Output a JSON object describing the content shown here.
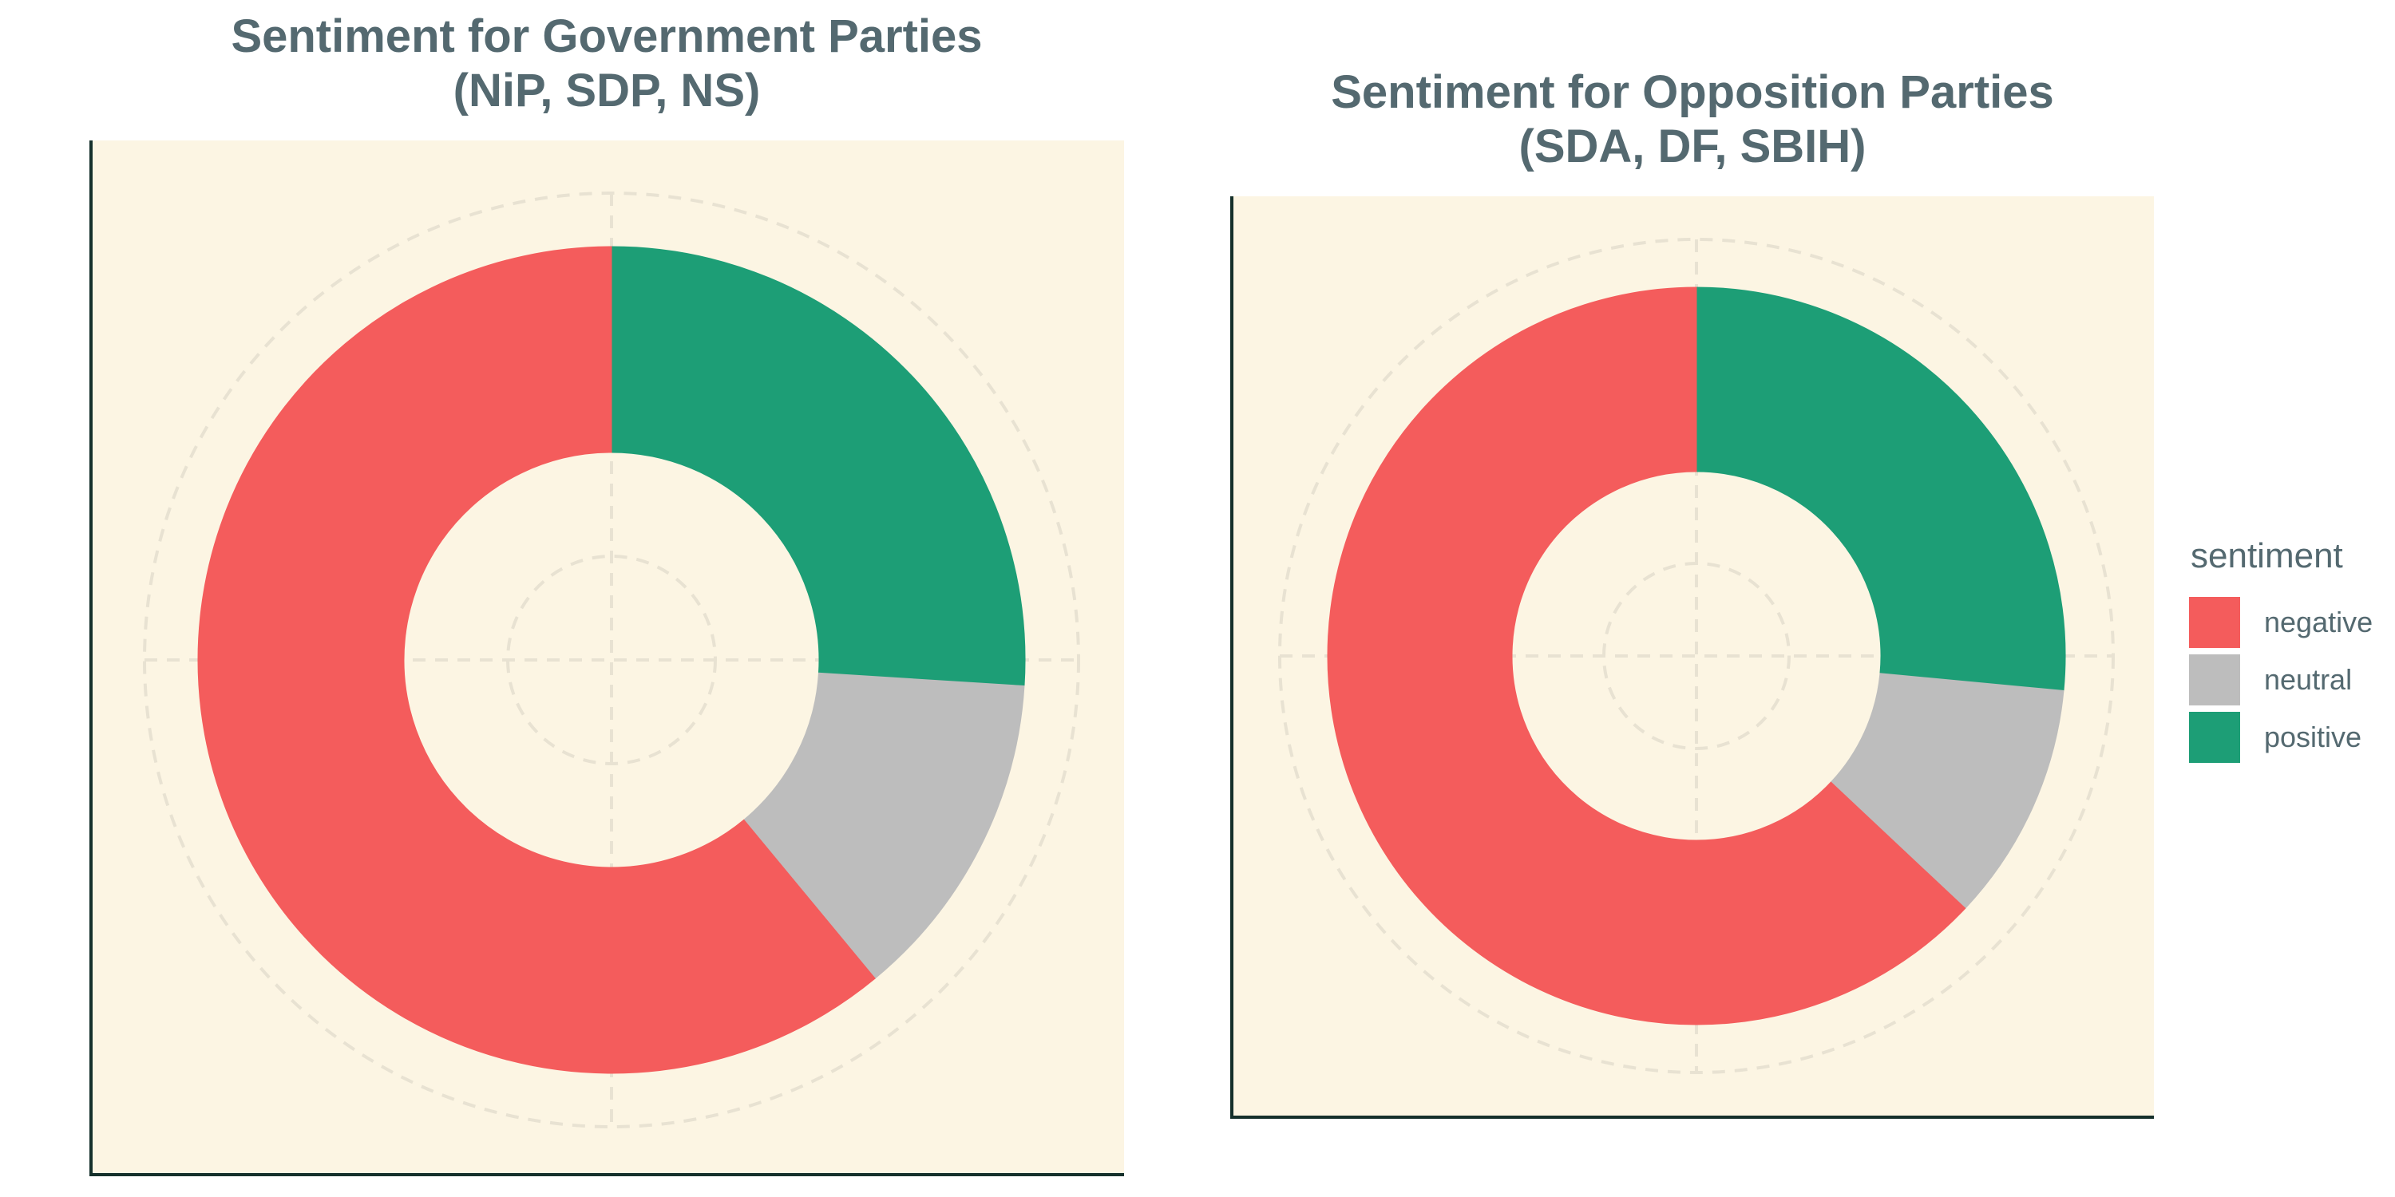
{
  "chart_data": [
    {
      "type": "donut",
      "title_lines": [
        "Sentiment for Government Parties",
        "(NiP, SDP, NS)"
      ],
      "categories": [
        "positive",
        "neutral",
        "negative"
      ],
      "values": [
        0.26,
        0.13,
        0.61
      ],
      "xlabel": "",
      "ylabel": "",
      "grid": true
    },
    {
      "type": "donut",
      "title_lines": [
        "Sentiment for Opposition Parties",
        "(SDA, DF, SBIH)"
      ],
      "categories": [
        "positive",
        "neutral",
        "negative"
      ],
      "values": [
        0.265,
        0.105,
        0.63
      ],
      "xlabel": "",
      "ylabel": "",
      "grid": true
    }
  ],
  "legend": {
    "title": "sentiment",
    "placement": "right",
    "items": [
      {
        "label": "negative",
        "color": "#f45c5c"
      },
      {
        "label": "neutral",
        "color": "#bdbdbd"
      },
      {
        "label": "positive",
        "color": "#1d9e76"
      }
    ]
  },
  "colors": {
    "positive": "#1d9e76",
    "neutral": "#bdbdbd",
    "negative": "#f45c5c",
    "panel_background": "#fcf5e3",
    "gridline": "#e8e2d2",
    "title": "#546970"
  }
}
